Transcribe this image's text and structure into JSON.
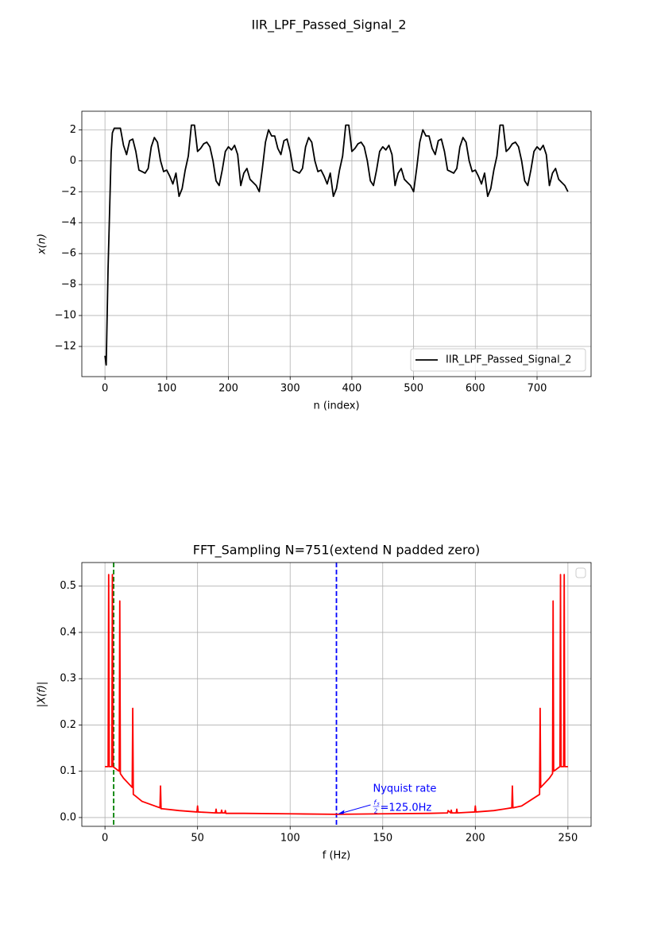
{
  "figure_title": "IIR_LPF_Passed_Signal_2",
  "chart_data": [
    {
      "type": "line",
      "xlabel": "n (index)",
      "ylabel": "x(n)",
      "grid": true,
      "legend": "lower right",
      "xlim": [
        -37.5,
        787.5
      ],
      "ylim": [
        -13.95,
        3.2
      ],
      "xticks": [
        0,
        100,
        200,
        300,
        400,
        500,
        600,
        700
      ],
      "yticks": [
        {
          "value": -12,
          "label": "−12"
        },
        {
          "value": -10,
          "label": "−10"
        },
        {
          "value": -8,
          "label": "−8"
        },
        {
          "value": -6,
          "label": "−6"
        },
        {
          "value": -4,
          "label": "−4"
        },
        {
          "value": -2,
          "label": "−2"
        },
        0,
        2
      ],
      "series": [
        {
          "name": "IIR_LPF_Passed_Signal_2",
          "color": "#000000",
          "x": [
            0,
            2,
            5,
            8,
            10,
            12,
            15,
            20,
            25,
            30,
            35,
            40,
            45,
            50,
            55,
            60,
            65,
            70,
            75,
            80,
            85,
            90,
            95,
            100,
            105,
            110,
            115,
            120,
            125,
            130,
            135,
            140,
            145,
            150,
            155,
            160,
            165,
            170,
            175,
            180,
            185,
            190,
            195,
            200,
            205,
            210,
            215,
            220,
            225,
            230,
            235,
            240,
            245,
            250,
            255,
            260,
            265,
            270,
            275,
            280,
            285,
            290,
            295,
            300,
            305,
            310,
            315,
            320,
            325,
            330,
            335,
            340,
            345,
            350,
            355,
            360,
            365,
            370,
            375,
            380,
            385,
            390,
            395,
            400,
            405,
            410,
            415,
            420,
            425,
            430,
            435,
            440,
            445,
            450,
            455,
            460,
            465,
            470,
            475,
            480,
            485,
            490,
            495,
            500,
            505,
            510,
            515,
            520,
            525,
            530,
            535,
            540,
            545,
            550,
            555,
            560,
            565,
            570,
            575,
            580,
            585,
            590,
            595,
            600,
            605,
            610,
            615,
            620,
            625,
            630,
            635,
            640,
            645,
            650,
            655,
            660,
            665,
            670,
            675,
            680,
            685,
            690,
            695,
            700,
            705,
            710,
            715,
            720,
            725,
            730,
            735,
            740,
            745,
            750
          ],
          "values": [
            -12.6,
            -13.2,
            -7,
            -2.5,
            0.5,
            1.8,
            2.1,
            2.1,
            2.1,
            1.0,
            0.4,
            1.3,
            1.4,
            0.6,
            -0.6,
            -0.7,
            -0.8,
            -0.5,
            0.9,
            1.5,
            1.2,
            0.0,
            -0.7,
            -0.6,
            -1.0,
            -1.5,
            -0.8,
            -2.3,
            -1.8,
            -0.6,
            0.3,
            2.3,
            2.3,
            0.6,
            0.8,
            1.1,
            1.2,
            0.9,
            0.0,
            -1.3,
            -1.6,
            -0.6,
            0.6,
            0.9,
            0.7,
            1.0,
            0.4,
            -1.6,
            -0.8,
            -0.5,
            -1.2,
            -1.4,
            -1.6,
            -2.0,
            -0.5,
            1.2,
            2.0,
            1.6,
            1.6,
            0.8,
            0.4,
            1.3,
            1.4,
            0.6,
            -0.6,
            -0.7,
            -0.8,
            -0.5,
            0.9,
            1.5,
            1.2,
            0.0,
            -0.7,
            -0.6,
            -1.0,
            -1.5,
            -0.8,
            -2.3,
            -1.8,
            -0.6,
            0.3,
            2.3,
            2.3,
            0.6,
            0.8,
            1.1,
            1.2,
            0.9,
            0.0,
            -1.3,
            -1.6,
            -0.6,
            0.6,
            0.9,
            0.7,
            1.0,
            0.4,
            -1.6,
            -0.8,
            -0.5,
            -1.2,
            -1.4,
            -1.6,
            -2.0,
            -0.5,
            1.2,
            2.0,
            1.6,
            1.6,
            0.8,
            0.4,
            1.3,
            1.4,
            0.6,
            -0.6,
            -0.7,
            -0.8,
            -0.5,
            0.9,
            1.5,
            1.2,
            0.0,
            -0.7,
            -0.6,
            -1.0,
            -1.5,
            -0.8,
            -2.3,
            -1.8,
            -0.6,
            0.3,
            2.3,
            2.3,
            0.6,
            0.8,
            1.1,
            1.2,
            0.9,
            0.0,
            -1.3,
            -1.6,
            -0.6,
            0.6,
            0.9,
            0.7,
            1.0,
            0.4,
            -1.6,
            -0.8,
            -0.5,
            -1.2,
            -1.4,
            -1.6,
            -2.0
          ]
        }
      ]
    },
    {
      "type": "line",
      "title": "FFT_Sampling N=751(extend N padded zero)",
      "xlabel": "f (Hz)",
      "ylabel": "|X(f)|",
      "grid": true,
      "legend": "upper right",
      "xlim": [
        -12.5,
        262.5
      ],
      "ylim": [
        -0.019,
        0.551
      ],
      "xticks": [
        0,
        50,
        100,
        150,
        200,
        250
      ],
      "yticks": [
        {
          "value": 0,
          "label": "0.0"
        },
        0.1,
        0.2,
        0.3,
        0.4,
        0.5
      ],
      "series": [
        {
          "color": "#ff0000",
          "x": [
            0,
            1.7,
            2,
            2.3,
            3.7,
            4,
            4.3,
            5,
            7.7,
            8,
            8.3,
            10,
            14.7,
            15,
            15.3,
            16,
            20,
            29.7,
            30,
            30.3,
            31,
            40,
            49.7,
            50,
            50.3,
            55,
            59.7,
            60,
            60.3,
            62.7,
            63,
            63.3,
            64.7,
            65,
            65.3,
            75,
            100,
            125,
            150,
            175,
            185,
            185.3,
            186.7,
            187,
            187.3,
            189.7,
            190,
            190.3,
            195,
            199.7,
            200,
            200.3,
            210,
            219.7,
            220,
            220.3,
            225,
            234.7,
            235,
            235.3,
            240,
            241.7,
            242,
            242.3,
            245,
            245.7,
            246,
            246.3,
            247.7,
            248,
            248.3,
            250
          ],
          "values": [
            0.11,
            0.11,
            0.525,
            0.11,
            0.11,
            0.525,
            0.11,
            0.108,
            0.1,
            0.468,
            0.095,
            0.085,
            0.065,
            0.236,
            0.05,
            0.048,
            0.035,
            0.021,
            0.068,
            0.019,
            0.019,
            0.015,
            0.012,
            0.025,
            0.012,
            0.011,
            0.01,
            0.018,
            0.01,
            0.01,
            0.016,
            0.01,
            0.01,
            0.015,
            0.009,
            0.009,
            0.008,
            0.007,
            0.008,
            0.009,
            0.01,
            0.015,
            0.01,
            0.016,
            0.01,
            0.01,
            0.018,
            0.01,
            0.011,
            0.012,
            0.025,
            0.012,
            0.015,
            0.021,
            0.068,
            0.021,
            0.025,
            0.05,
            0.236,
            0.065,
            0.085,
            0.095,
            0.468,
            0.1,
            0.108,
            0.11,
            0.525,
            0.11,
            0.11,
            0.525,
            0.11,
            0.11
          ]
        }
      ],
      "vlines": [
        {
          "x": 4.7,
          "color": "#008000"
        },
        {
          "x": 125,
          "color": "#0000ff"
        }
      ],
      "annotation": {
        "text": "Nyquist rate",
        "fraction_numerator": "f",
        "fraction_subscript": "s",
        "fraction_denominator": "2",
        "value_text": "=125.0Hz",
        "color": "#0000ff"
      }
    }
  ]
}
